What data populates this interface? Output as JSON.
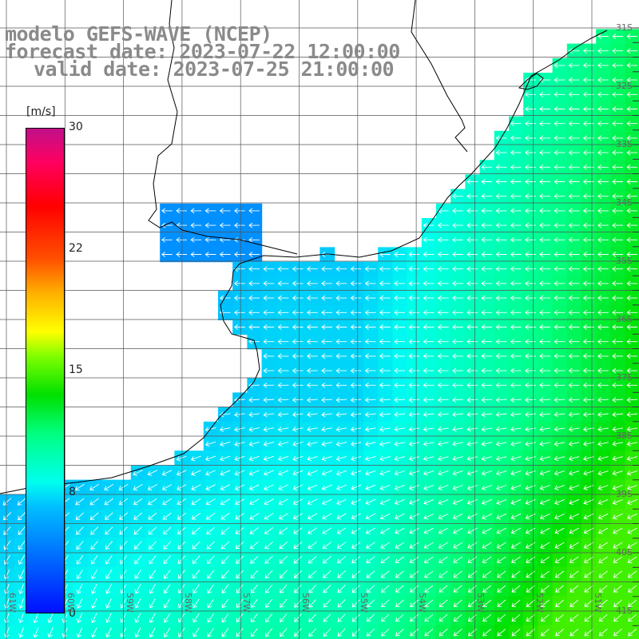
{
  "title": {
    "line1": "modelo GEFS-WAVE (NCEP)",
    "line2": "forecast date: 2023-07-22 12:00:00",
    "line3": "valid date: 2023-07-25 21:00:00"
  },
  "colorbar": {
    "unit": "[m/s]",
    "ticks": [
      "30",
      "22",
      "15",
      "8",
      "0"
    ]
  },
  "lat_labels": [
    "31S",
    "32S",
    "33S",
    "34S",
    "35S",
    "36S",
    "37S",
    "38S",
    "39S",
    "40S",
    "41S"
  ],
  "lon_labels": [
    "61W",
    "60W",
    "59W",
    "58W",
    "57W",
    "56W",
    "55W",
    "54W",
    "53W",
    "52W",
    "51W"
  ],
  "colors": {
    "land": "#ffffff",
    "grid": "#555555",
    "coast": "#000000",
    "arrow": "#ffffff"
  }
}
